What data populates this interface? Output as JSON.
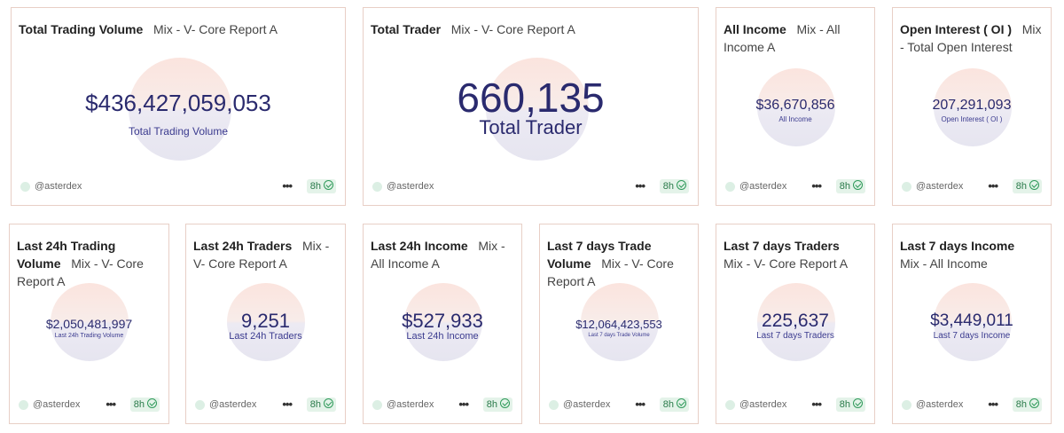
{
  "footer": {
    "handle": "@asterdex",
    "age": "8h",
    "more": "•••"
  },
  "cards": [
    {
      "title_bold": "Total Trading Volume",
      "title_sub": "Mix - V- Core Report A",
      "value": "$436,427,059,053",
      "label": "Total Trading Volume"
    },
    {
      "title_bold": "Total Trader",
      "title_sub": "Mix - V- Core Report A",
      "value": "660,135",
      "label": "Total Trader"
    },
    {
      "title_bold": "All Income",
      "title_sub": "Mix - All Income A",
      "value": "$36,670,856",
      "label": "All Income"
    },
    {
      "title_bold": "Open Interest ( OI )",
      "title_sub": "Mix - Total Open Interest",
      "value": "207,291,093",
      "label": "Open Interest ( OI )"
    },
    {
      "title_bold": "Last 24h Trading Volume",
      "title_sub": "Mix - V- Core Report A",
      "value": "$2,050,481,997",
      "label": "Last 24h Trading Volume"
    },
    {
      "title_bold": "Last 24h Traders",
      "title_sub": "Mix - V- Core Report A",
      "value": "9,251",
      "label": "Last 24h Traders"
    },
    {
      "title_bold": "Last 24h Income",
      "title_sub": "Mix - All Income A",
      "value": "$527,933",
      "label": "Last 24h Income"
    },
    {
      "title_bold": "Last 7 days Trade Volume",
      "title_sub": "Mix - V- Core Report A",
      "value": "$12,064,423,553",
      "label": "Last 7 days Trade Volume"
    },
    {
      "title_bold": "Last 7 days Traders",
      "title_sub": "Mix - V- Core Report A",
      "value": "225,637",
      "label": "Last 7 days Traders"
    },
    {
      "title_bold": "Last 7 days Income",
      "title_sub": "Mix - All Income",
      "value": "$3,449,011",
      "label": "Last 7 days Income"
    }
  ]
}
